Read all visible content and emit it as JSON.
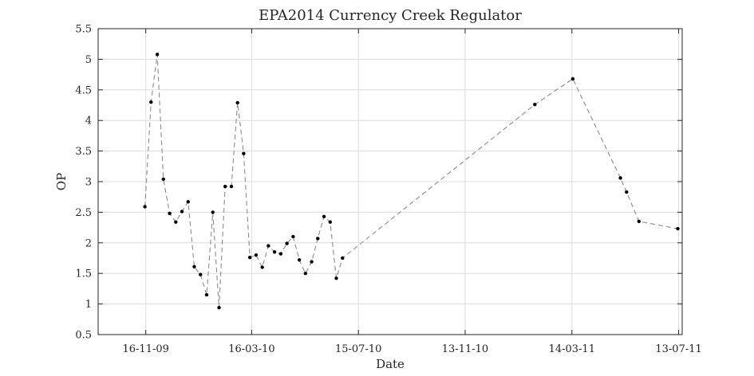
{
  "chart_data": {
    "type": "line",
    "title": "EPA2014 Currency Creek Regulator",
    "xlabel": "Date",
    "ylabel": "OP",
    "ylim": [
      0.5,
      5.5
    ],
    "xlim": [
      "2009-09-23",
      "2011-07-17"
    ],
    "x_ticks": [
      {
        "date": "2009-11-16",
        "label": "16-11-09"
      },
      {
        "date": "2010-03-16",
        "label": "16-03-10"
      },
      {
        "date": "2010-07-15",
        "label": "15-07-10"
      },
      {
        "date": "2010-11-13",
        "label": "13-11-10"
      },
      {
        "date": "2011-03-14",
        "label": "14-03-11"
      },
      {
        "date": "2011-07-13",
        "label": "13-07-11"
      }
    ],
    "y_ticks": [
      "0.5",
      "1",
      "1.5",
      "2",
      "2.5",
      "3",
      "3.5",
      "4",
      "4.5",
      "5",
      "5.5"
    ],
    "grid": true,
    "line_style": "dashed",
    "line_color": "#8c8c8c",
    "marker_color": "#000000",
    "series": [
      {
        "name": "",
        "points": [
          {
            "x": "2009-11-15",
            "y": 2.59
          },
          {
            "x": "2009-11-22",
            "y": 4.3
          },
          {
            "x": "2009-11-29",
            "y": 5.08
          },
          {
            "x": "2009-12-06",
            "y": 3.04
          },
          {
            "x": "2009-12-13",
            "y": 2.48
          },
          {
            "x": "2009-12-20",
            "y": 2.34
          },
          {
            "x": "2009-12-27",
            "y": 2.51
          },
          {
            "x": "2010-01-03",
            "y": 2.67
          },
          {
            "x": "2010-01-10",
            "y": 1.61
          },
          {
            "x": "2010-01-17",
            "y": 1.48
          },
          {
            "x": "2010-01-24",
            "y": 1.15
          },
          {
            "x": "2010-01-31",
            "y": 2.5
          },
          {
            "x": "2010-02-07",
            "y": 0.94
          },
          {
            "x": "2010-02-14",
            "y": 2.92
          },
          {
            "x": "2010-02-21",
            "y": 2.92
          },
          {
            "x": "2010-02-28",
            "y": 4.29
          },
          {
            "x": "2010-03-07",
            "y": 3.46
          },
          {
            "x": "2010-03-14",
            "y": 1.76
          },
          {
            "x": "2010-03-21",
            "y": 1.8
          },
          {
            "x": "2010-03-28",
            "y": 1.6
          },
          {
            "x": "2010-04-04",
            "y": 1.95
          },
          {
            "x": "2010-04-11",
            "y": 1.85
          },
          {
            "x": "2010-04-18",
            "y": 1.82
          },
          {
            "x": "2010-04-25",
            "y": 1.99
          },
          {
            "x": "2010-05-02",
            "y": 2.1
          },
          {
            "x": "2010-05-09",
            "y": 1.72
          },
          {
            "x": "2010-05-16",
            "y": 1.5
          },
          {
            "x": "2010-05-23",
            "y": 1.69
          },
          {
            "x": "2010-05-30",
            "y": 2.07
          },
          {
            "x": "2010-06-06",
            "y": 2.43
          },
          {
            "x": "2010-06-13",
            "y": 2.34
          },
          {
            "x": "2010-06-20",
            "y": 1.42
          },
          {
            "x": "2010-06-27",
            "y": 1.75
          },
          {
            "x": "2011-01-31",
            "y": 4.26
          },
          {
            "x": "2011-03-15",
            "y": 4.68
          },
          {
            "x": "2011-05-08",
            "y": 3.06
          },
          {
            "x": "2011-05-15",
            "y": 2.83
          },
          {
            "x": "2011-05-29",
            "y": 2.35
          },
          {
            "x": "2011-07-12",
            "y": 2.23
          }
        ]
      }
    ]
  }
}
